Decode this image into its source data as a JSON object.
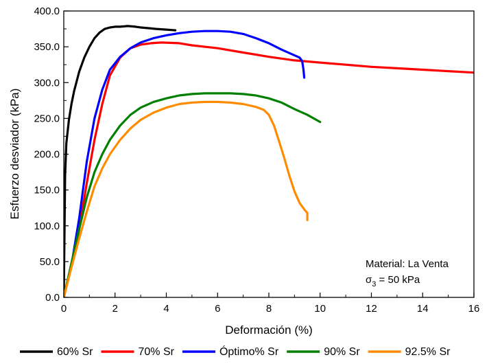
{
  "chart_data": {
    "type": "line",
    "title": "",
    "xlabel": "Deformación (%)",
    "ylabel": "Esfuerzo desviador (kPa)",
    "xlim": [
      0,
      16
    ],
    "ylim": [
      0,
      400
    ],
    "x_ticks": [
      0,
      2,
      4,
      6,
      8,
      10,
      12,
      14,
      16
    ],
    "x_tick_labels": [
      "0",
      "2",
      "4",
      "6",
      "8",
      "10",
      "12",
      "14",
      "16"
    ],
    "y_ticks": [
      0,
      50,
      100,
      150,
      200,
      250,
      300,
      350,
      400
    ],
    "y_tick_labels": [
      "0.0",
      "50.0",
      "100.0",
      "150.0",
      "200.0",
      "250.0",
      "300.0",
      "350.0",
      "400.0"
    ],
    "grid": false,
    "legend_position": "bottom",
    "annotation": {
      "line1": "Material: La Venta",
      "line2_symbol": "σ",
      "line2_subscript": "3",
      "line2_rest": " = 50 kPa"
    },
    "series": [
      {
        "name": "60% Sr",
        "color": "#000000",
        "x": [
          0,
          0.05,
          0.1,
          0.2,
          0.3,
          0.4,
          0.6,
          0.8,
          1.0,
          1.2,
          1.4,
          1.6,
          1.8,
          2.0,
          2.2,
          2.5,
          2.8,
          3.0,
          3.3,
          3.6,
          4.0,
          4.35
        ],
        "y": [
          0,
          170,
          215,
          248,
          270,
          288,
          315,
          335,
          350,
          362,
          370,
          375,
          377,
          378,
          378,
          379,
          378,
          377,
          376,
          375,
          374,
          373
        ]
      },
      {
        "name": "70% Sr",
        "color": "#ff0000",
        "x": [
          0,
          0.3,
          0.6,
          0.9,
          1.2,
          1.5,
          1.8,
          2.2,
          2.6,
          3.0,
          3.4,
          3.8,
          4.5,
          5.0,
          6.0,
          7.0,
          8.0,
          9.0,
          10.0,
          11.0,
          12.0,
          13.0,
          14.0,
          15.0,
          16.0
        ],
        "y": [
          0,
          45,
          95,
          160,
          220,
          270,
          310,
          335,
          348,
          353,
          355,
          356,
          355,
          352,
          348,
          342,
          336,
          331,
          328,
          325,
          322,
          320,
          318,
          316,
          314
        ]
      },
      {
        "name": "Óptimo% Sr",
        "color": "#0000ff",
        "x": [
          0,
          0.3,
          0.6,
          0.9,
          1.2,
          1.5,
          1.8,
          2.2,
          2.6,
          3.0,
          3.5,
          4.0,
          4.5,
          5.0,
          5.5,
          6.0,
          6.5,
          7.0,
          7.5,
          8.0,
          8.5,
          9.0,
          9.2,
          9.3,
          9.35,
          9.38
        ],
        "y": [
          0,
          45,
          110,
          190,
          250,
          290,
          318,
          336,
          348,
          356,
          362,
          366,
          369,
          371,
          372,
          372,
          371,
          368,
          362,
          355,
          346,
          338,
          335,
          330,
          318,
          307
        ]
      },
      {
        "name": "90% Sr",
        "color": "#008000",
        "x": [
          0,
          0.3,
          0.6,
          0.9,
          1.2,
          1.5,
          1.8,
          2.2,
          2.6,
          3.0,
          3.5,
          4.0,
          4.5,
          5.0,
          5.5,
          6.0,
          6.5,
          7.0,
          7.5,
          8.0,
          8.5,
          9.0,
          9.5,
          10.0
        ],
        "y": [
          0,
          48,
          95,
          140,
          175,
          200,
          220,
          240,
          255,
          265,
          273,
          278,
          282,
          284,
          285,
          285,
          285,
          284,
          282,
          278,
          272,
          263,
          255,
          245
        ]
      },
      {
        "name": "92.5% Sr",
        "color": "#ff8c00",
        "x": [
          0,
          0.3,
          0.6,
          0.9,
          1.2,
          1.5,
          1.8,
          2.2,
          2.6,
          3.0,
          3.5,
          4.0,
          4.5,
          5.0,
          5.5,
          6.0,
          6.5,
          7.0,
          7.5,
          7.8,
          8.0,
          8.2,
          8.4,
          8.6,
          8.8,
          9.0,
          9.2,
          9.4,
          9.5,
          9.5
        ],
        "y": [
          0,
          42,
          82,
          120,
          155,
          180,
          200,
          220,
          236,
          248,
          258,
          265,
          270,
          272,
          273,
          273,
          272,
          270,
          266,
          262,
          255,
          240,
          218,
          195,
          170,
          148,
          132,
          122,
          118,
          108
        ]
      }
    ]
  }
}
